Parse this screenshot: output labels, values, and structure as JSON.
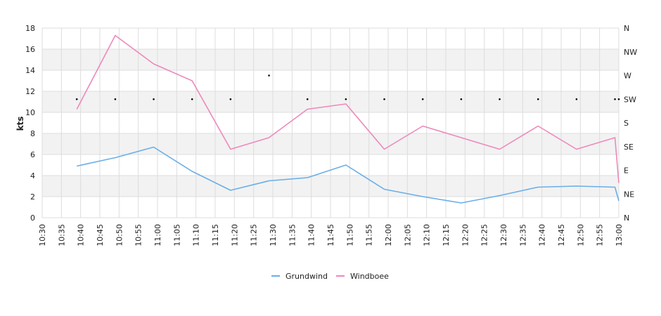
{
  "chart_data": {
    "type": "line",
    "ylabel": "kts",
    "ylim": [
      0,
      18
    ],
    "yticks": [
      0,
      2,
      4,
      6,
      8,
      10,
      12,
      14,
      16,
      18
    ],
    "direction_ticks": [
      "N",
      "NE",
      "E",
      "SE",
      "S",
      "SW",
      "W",
      "NW",
      "N"
    ],
    "x_ticks": [
      "10:30",
      "10:35",
      "10:40",
      "10:45",
      "10:50",
      "10:55",
      "11:00",
      "11:05",
      "11:10",
      "11:15",
      "11:20",
      "11:25",
      "11:30",
      "11:35",
      "11:40",
      "11:45",
      "11:50",
      "11:55",
      "12:00",
      "12:05",
      "12:10",
      "12:15",
      "12:20",
      "12:25",
      "12:30",
      "12:35",
      "12:40",
      "12:45",
      "12:50",
      "12:55",
      "13:00"
    ],
    "x_min": "10:30",
    "x_max": "13:00",
    "grid": true,
    "legend_position": "bottom-center",
    "series": [
      {
        "name": "Grundwind",
        "color": "#6aaee8",
        "x": [
          "10:39",
          "10:49",
          "10:59",
          "11:09",
          "11:19",
          "11:29",
          "11:39",
          "11:49",
          "11:59",
          "12:09",
          "12:19",
          "12:29",
          "12:39",
          "12:49",
          "12:59",
          "13:00"
        ],
        "values": [
          4.9,
          5.7,
          6.7,
          4.4,
          2.6,
          3.5,
          3.8,
          5.0,
          2.7,
          2.0,
          1.4,
          2.1,
          2.9,
          3.0,
          2.9,
          1.6
        ]
      },
      {
        "name": "Windboee",
        "color": "#ee88bb",
        "x": [
          "10:39",
          "10:49",
          "10:59",
          "11:09",
          "11:19",
          "11:29",
          "11:39",
          "11:49",
          "11:59",
          "12:09",
          "12:19",
          "12:29",
          "12:39",
          "12:49",
          "12:59",
          "13:00"
        ],
        "values": [
          10.3,
          17.3,
          14.6,
          13.0,
          6.5,
          7.6,
          10.3,
          10.8,
          6.5,
          8.7,
          7.6,
          6.5,
          8.7,
          6.5,
          7.6,
          3.3
        ]
      }
    ],
    "direction_points": {
      "color": "#000000",
      "x": [
        "10:39",
        "10:49",
        "10:59",
        "11:09",
        "11:19",
        "11:29",
        "11:39",
        "11:49",
        "11:59",
        "12:09",
        "12:19",
        "12:29",
        "12:39",
        "12:49",
        "12:59",
        "13:00"
      ],
      "values": [
        "SW",
        "SW",
        "SW",
        "SW",
        "SW",
        "W",
        "SW",
        "SW",
        "SW",
        "SW",
        "SW",
        "SW",
        "SW",
        "SW",
        "SW",
        "SW"
      ]
    }
  }
}
